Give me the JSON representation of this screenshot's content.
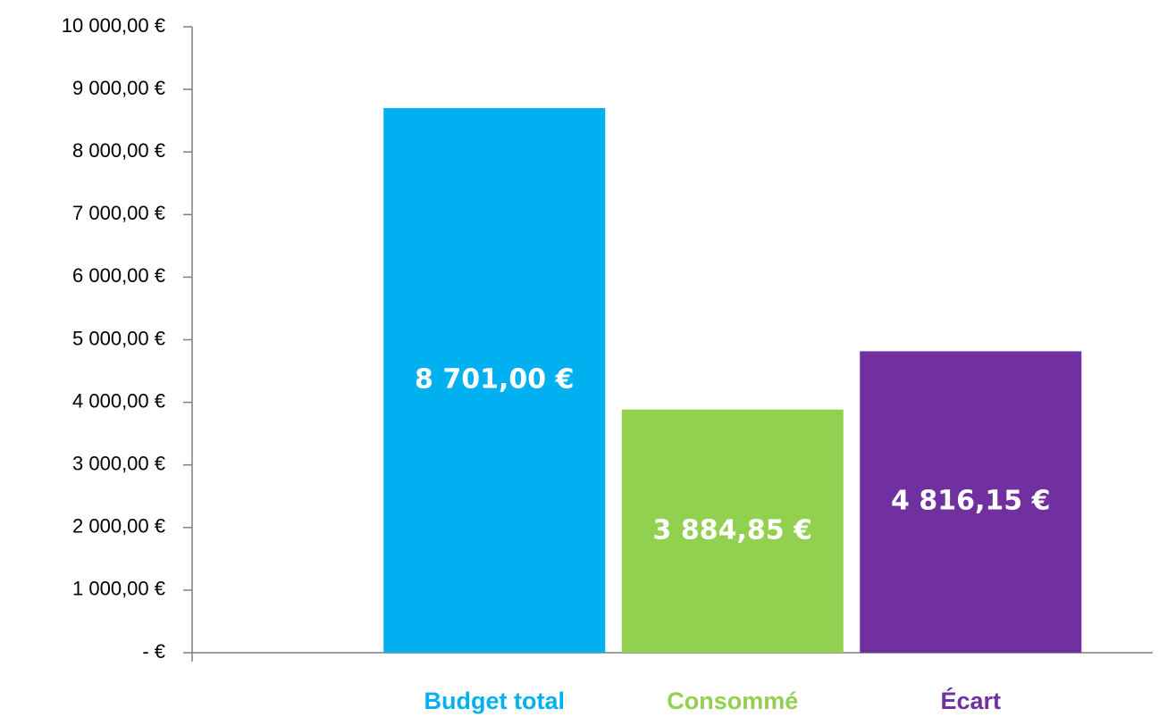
{
  "chart_data": {
    "type": "bar",
    "categories": [
      "Budget total",
      "Consommé",
      "Écart"
    ],
    "values": [
      8701.0,
      3884.85,
      4816.15
    ],
    "value_labels": [
      "8 701,00 €",
      "3 884,85 €",
      "4 816,15 €"
    ],
    "colors": [
      "#00b0f0",
      "#92d050",
      "#7030a0"
    ],
    "ylim": [
      0,
      10000
    ],
    "yticks": [
      {
        "value": 0,
        "label": "-  €"
      },
      {
        "value": 1000,
        "label": "1 000,00 €"
      },
      {
        "value": 2000,
        "label": "2 000,00 €"
      },
      {
        "value": 3000,
        "label": "3 000,00 €"
      },
      {
        "value": 4000,
        "label": "4 000,00 €"
      },
      {
        "value": 5000,
        "label": "5 000,00 €"
      },
      {
        "value": 6000,
        "label": "6 000,00 €"
      },
      {
        "value": 7000,
        "label": "7 000,00 €"
      },
      {
        "value": 8000,
        "label": "8 000,00 €"
      },
      {
        "value": 9000,
        "label": "9 000,00 €"
      },
      {
        "value": 10000,
        "label": "10 000,00 €"
      }
    ]
  }
}
